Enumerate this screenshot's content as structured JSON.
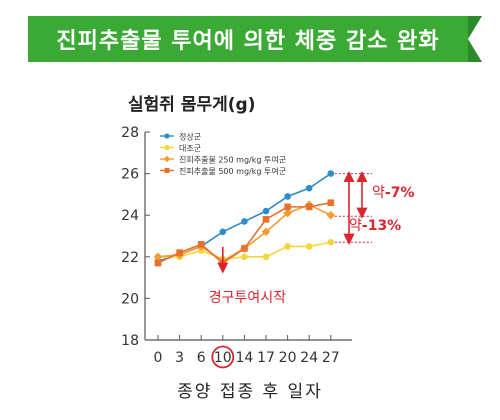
{
  "banner": {
    "title": "진피추출물 투여에 의한 체중 감소 완화"
  },
  "chart_data": {
    "type": "line",
    "ylabel": "실험쥐 몸무게(g)",
    "xlabel": "종양 접종 후 일자",
    "categories": [
      "0",
      "3",
      "6",
      "10",
      "14",
      "17",
      "20",
      "24",
      "27"
    ],
    "ylim": [
      18,
      28
    ],
    "yticks": [
      18,
      20,
      22,
      24,
      26,
      28
    ],
    "highlighted_category": "10",
    "legend_position": "top-left",
    "series": [
      {
        "name": "정상군",
        "color": "#2e8bc9",
        "marker": "circle",
        "values": [
          21.8,
          22.1,
          22.5,
          23.2,
          23.7,
          24.2,
          24.9,
          25.3,
          26.0
        ]
      },
      {
        "name": "대조군",
        "color": "#f6d53c",
        "marker": "circle",
        "values": [
          22.0,
          22.0,
          22.3,
          21.9,
          22.0,
          22.0,
          22.5,
          22.5,
          22.7
        ]
      },
      {
        "name": "진피추출물 250 mg/kg 투여군",
        "color": "#f39c34",
        "marker": "diamond",
        "values": [
          22.0,
          22.1,
          22.5,
          21.8,
          22.4,
          23.2,
          24.1,
          24.5,
          24.0
        ]
      },
      {
        "name": "진피추출물 500 mg/kg 투여군",
        "color": "#e8702a",
        "marker": "square",
        "values": [
          21.7,
          22.2,
          22.6,
          21.7,
          22.4,
          23.8,
          24.4,
          24.4,
          24.6
        ]
      }
    ],
    "annotations": {
      "start": "경구투여시작",
      "diff_small_prefix": "약",
      "diff_small_value": "-7%",
      "diff_large_prefix": "약",
      "diff_large_value": "-13%"
    }
  }
}
